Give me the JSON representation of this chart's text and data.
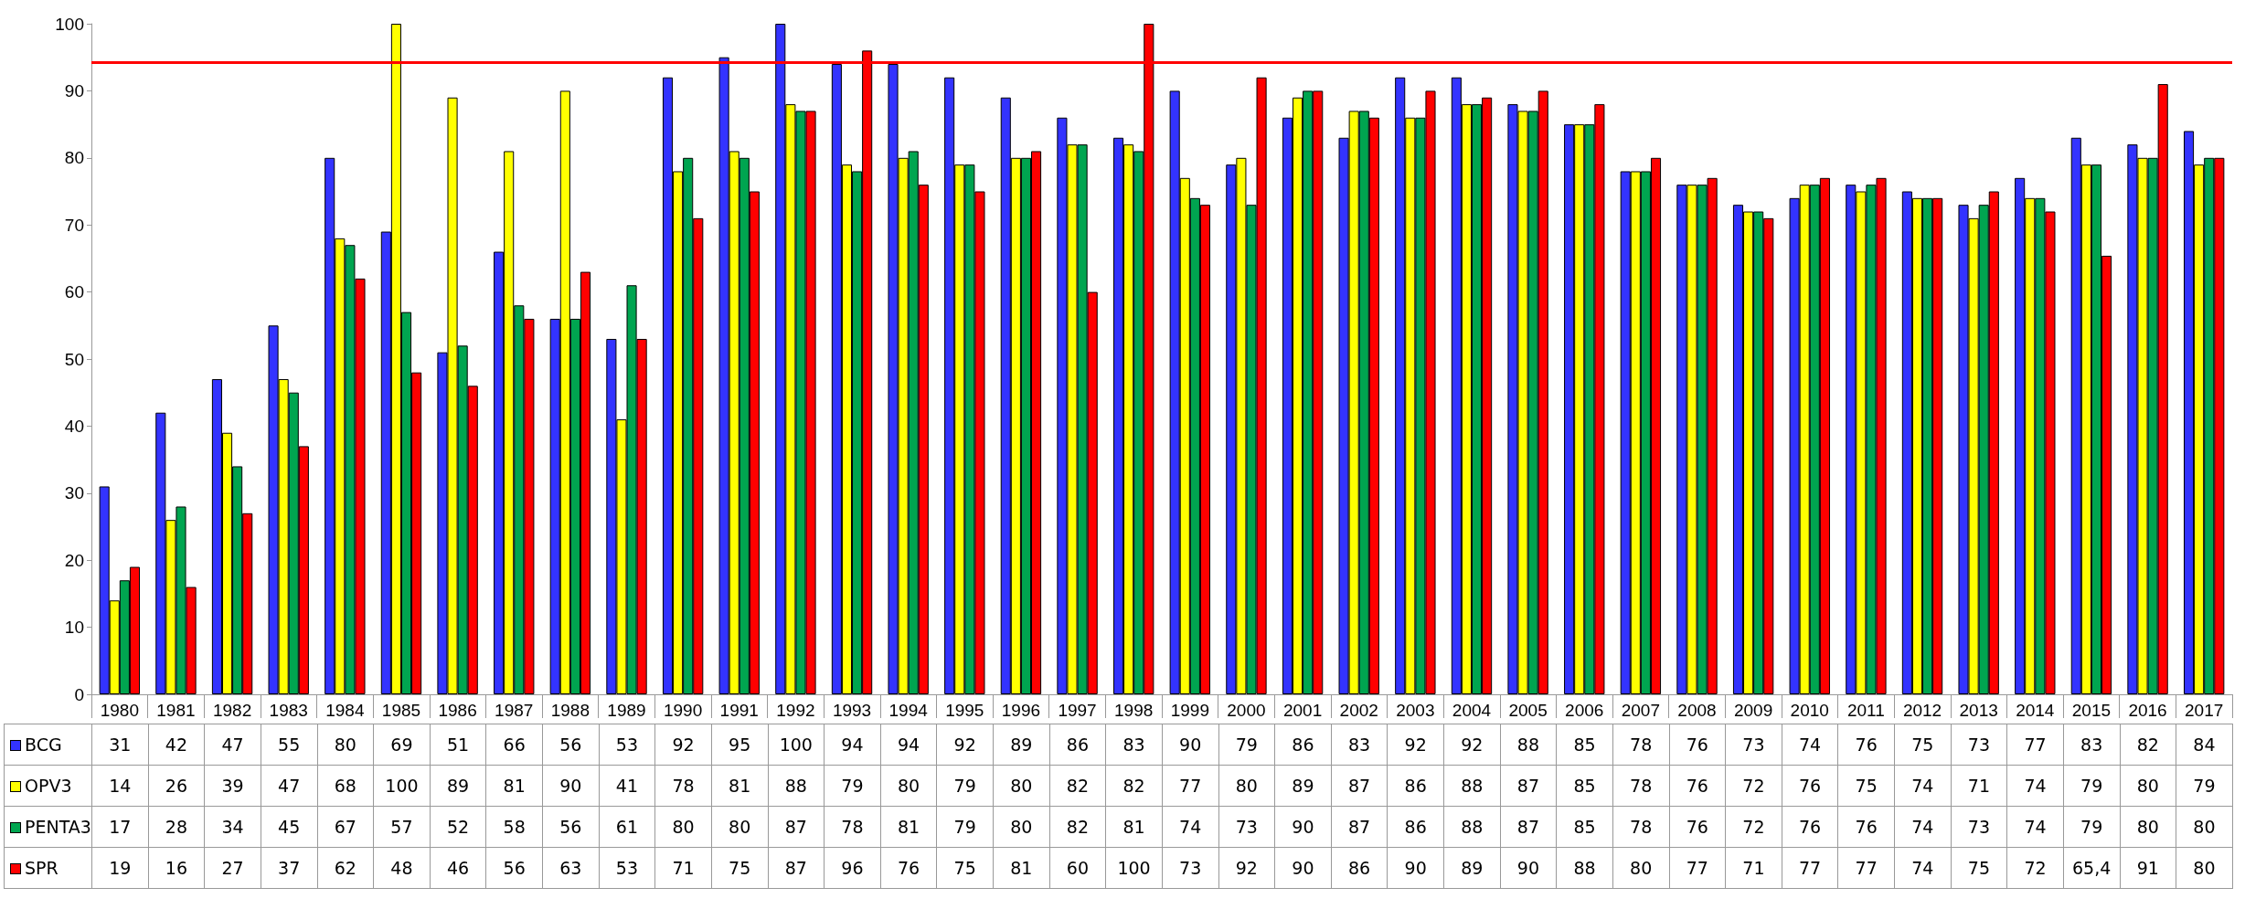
{
  "chart_data": {
    "type": "bar",
    "categories": [
      "1980",
      "1981",
      "1982",
      "1983",
      "1984",
      "1985",
      "1986",
      "1987",
      "1988",
      "1989",
      "1990",
      "1991",
      "1992",
      "1993",
      "1994",
      "1995",
      "1996",
      "1997",
      "1998",
      "1999",
      "2000",
      "2001",
      "2002",
      "2003",
      "2004",
      "2005",
      "2006",
      "2007",
      "2008",
      "2009",
      "2010",
      "2011",
      "2012",
      "2013",
      "2014",
      "2015",
      "2016",
      "2017"
    ],
    "series": [
      {
        "name": "BCG",
        "color": "#3333ff",
        "values": [
          31,
          42,
          47,
          55,
          80,
          69,
          51,
          66,
          56,
          53,
          92,
          95,
          100,
          94,
          94,
          92,
          89,
          86,
          83,
          90,
          79,
          86,
          83,
          92,
          92,
          88,
          85,
          78,
          76,
          73,
          74,
          76,
          75,
          73,
          77,
          83,
          82,
          84
        ],
        "value_labels": [
          "31",
          "42",
          "47",
          "55",
          "80",
          "69",
          "51",
          "66",
          "56",
          "53",
          "92",
          "95",
          "100",
          "94",
          "94",
          "92",
          "89",
          "86",
          "83",
          "90",
          "79",
          "86",
          "83",
          "92",
          "92",
          "88",
          "85",
          "78",
          "76",
          "73",
          "74",
          "76",
          "75",
          "73",
          "77",
          "83",
          "82",
          "84"
        ]
      },
      {
        "name": "OPV3",
        "color": "#ffff00",
        "values": [
          14,
          26,
          39,
          47,
          68,
          100,
          89,
          81,
          90,
          41,
          78,
          81,
          88,
          79,
          80,
          79,
          80,
          82,
          82,
          77,
          80,
          89,
          87,
          86,
          88,
          87,
          85,
          78,
          76,
          72,
          76,
          75,
          74,
          71,
          74,
          79,
          80,
          79
        ],
        "value_labels": [
          "14",
          "26",
          "39",
          "47",
          "68",
          "100",
          "89",
          "81",
          "90",
          "41",
          "78",
          "81",
          "88",
          "79",
          "80",
          "79",
          "80",
          "82",
          "82",
          "77",
          "80",
          "89",
          "87",
          "86",
          "88",
          "87",
          "85",
          "78",
          "76",
          "72",
          "76",
          "75",
          "74",
          "71",
          "74",
          "79",
          "80",
          "79"
        ]
      },
      {
        "name": "PENTA3",
        "color": "#00a550",
        "values": [
          17,
          28,
          34,
          45,
          67,
          57,
          52,
          58,
          56,
          61,
          80,
          80,
          87,
          78,
          81,
          79,
          80,
          82,
          81,
          74,
          73,
          90,
          87,
          86,
          88,
          87,
          85,
          78,
          76,
          72,
          76,
          76,
          74,
          73,
          74,
          79,
          80,
          80
        ],
        "value_labels": [
          "17",
          "28",
          "34",
          "45",
          "67",
          "57",
          "52",
          "58",
          "56",
          "61",
          "80",
          "80",
          "87",
          "78",
          "81",
          "79",
          "80",
          "82",
          "81",
          "74",
          "73",
          "90",
          "87",
          "86",
          "88",
          "87",
          "85",
          "78",
          "76",
          "72",
          "76",
          "76",
          "74",
          "73",
          "74",
          "79",
          "80",
          "80"
        ]
      },
      {
        "name": "SPR",
        "color": "#ff0000",
        "values": [
          19,
          16,
          27,
          37,
          62,
          48,
          46,
          56,
          63,
          53,
          71,
          75,
          87,
          96,
          76,
          75,
          81,
          60,
          100,
          73,
          92,
          90,
          86,
          90,
          89,
          90,
          88,
          80,
          77,
          71,
          77,
          77,
          74,
          75,
          72,
          65.4,
          91,
          80
        ],
        "value_labels": [
          "19",
          "16",
          "27",
          "37",
          "62",
          "48",
          "46",
          "56",
          "63",
          "53",
          "71",
          "75",
          "87",
          "96",
          "76",
          "75",
          "81",
          "60",
          "100",
          "73",
          "92",
          "90",
          "86",
          "90",
          "89",
          "90",
          "88",
          "80",
          "77",
          "71",
          "77",
          "77",
          "74",
          "75",
          "72",
          "65,4",
          "91",
          "80"
        ]
      }
    ],
    "ylim": [
      0,
      100
    ],
    "yticks": [
      0,
      10,
      20,
      30,
      40,
      50,
      60,
      70,
      80,
      90,
      100
    ],
    "ref_lines": [
      {
        "axis": "y",
        "value": 94.2,
        "color": "#ff0000"
      }
    ],
    "grid": false,
    "legend": "bottom left"
  }
}
